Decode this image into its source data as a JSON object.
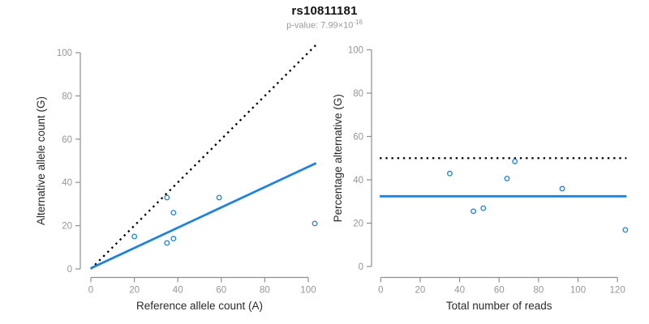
{
  "header": {
    "title": "rs10811181",
    "pvalue_prefix": "p-value: 7.99×10",
    "pvalue_exponent": "-16"
  },
  "style": {
    "axis_color": "#8f8f8f",
    "tick_text_color": "#969696",
    "label_color": "#2a2a2a",
    "point_color": "#1f82e0",
    "fit_line_color": "#1f82e0",
    "reference_line_color": "#000000",
    "subtitle_color": "#9a9a9a"
  },
  "chart_data": [
    {
      "type": "scatter",
      "xlabel": "Reference allele count (A)",
      "ylabel": "Alternative allele count (G)",
      "xlim": [
        0,
        104
      ],
      "ylim": [
        0,
        104
      ],
      "xticks": [
        0,
        20,
        40,
        60,
        80,
        100
      ],
      "yticks": [
        0,
        20,
        40,
        60,
        80,
        100
      ],
      "points": [
        [
          20,
          15
        ],
        [
          35,
          12
        ],
        [
          35,
          33
        ],
        [
          38,
          14
        ],
        [
          38,
          26
        ],
        [
          59,
          33
        ],
        [
          103,
          21
        ]
      ],
      "lines": [
        {
          "name": "identity-line",
          "x1": 0,
          "y1": 0,
          "x2": 104,
          "y2": 104,
          "style": "dotted",
          "color": "#000000"
        },
        {
          "name": "fit-line",
          "x1": 0,
          "y1": 0.3,
          "x2": 103.6,
          "y2": 48.9,
          "style": "solid",
          "color": "#1f82e0"
        }
      ],
      "grid": false,
      "legend": null
    },
    {
      "type": "scatter",
      "xlabel": "Total number of reads",
      "ylabel": "Percentage alternative (G)",
      "xlim": [
        0,
        125
      ],
      "ylim": [
        0,
        100
      ],
      "xticks": [
        0,
        20,
        40,
        60,
        80,
        100,
        120
      ],
      "yticks": [
        0,
        20,
        40,
        60,
        80,
        100
      ],
      "points": [
        [
          35,
          42.9
        ],
        [
          47,
          25.5
        ],
        [
          52,
          26.9
        ],
        [
          64,
          40.6
        ],
        [
          68,
          48.5
        ],
        [
          92,
          35.9
        ],
        [
          124,
          16.9
        ]
      ],
      "lines": [
        {
          "name": "null-line",
          "x1": -0.5,
          "y1": 50,
          "x2": 124.6,
          "y2": 50,
          "style": "dotted",
          "color": "#000000"
        },
        {
          "name": "fit-line",
          "x1": -0.5,
          "y1": 32.4,
          "x2": 124.6,
          "y2": 32.4,
          "style": "solid",
          "color": "#1f82e0"
        }
      ],
      "grid": false,
      "legend": null
    }
  ]
}
